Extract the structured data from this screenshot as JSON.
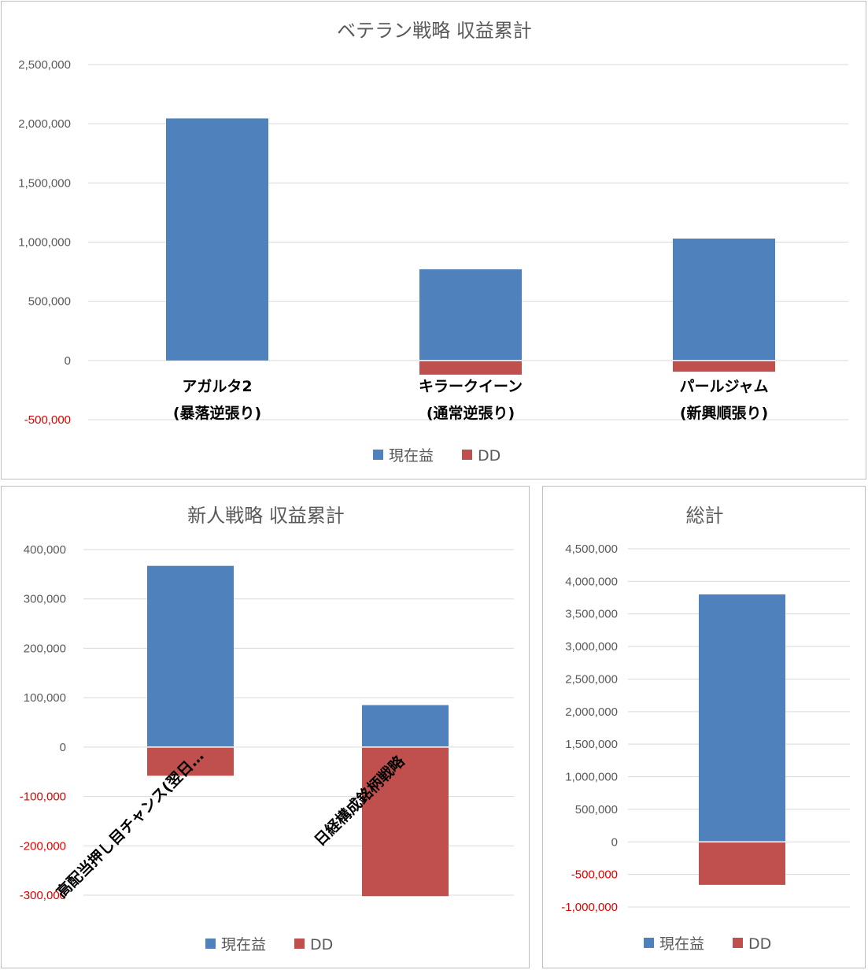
{
  "colors": {
    "profit": "#4f81bd",
    "dd": "#c0504d",
    "grid": "#d9d9d9",
    "axis_text": "#595959",
    "negative_tick": "#e00000"
  },
  "legend": {
    "profit_label": "現在益",
    "dd_label": "DD"
  },
  "chart_data": [
    {
      "id": "veteran",
      "type": "bar",
      "title": "ベテラン戦略 収益累計",
      "categories": [
        [
          "アガルタ2",
          "(暴落逆張り)"
        ],
        [
          "キラークイーン",
          "(通常逆張り)"
        ],
        [
          "パールジャム",
          "(新興順張り)"
        ]
      ],
      "series": [
        {
          "name": "現在益",
          "values": [
            2045000,
            770000,
            1030000
          ]
        },
        {
          "name": "DD",
          "values": [
            0,
            -120000,
            -95000
          ]
        }
      ],
      "ylim": [
        -500000,
        2500000
      ],
      "yticks": [
        2500000,
        2000000,
        1500000,
        1000000,
        500000,
        0,
        -500000
      ],
      "ytick_labels": [
        "2,500,000",
        "2,000,000",
        "1,500,000",
        "1,000,000",
        "500,000",
        "0",
        "-500,000"
      ],
      "legend_position": "bottom",
      "grid": true
    },
    {
      "id": "rookie",
      "type": "bar",
      "title": "新人戦略 収益累計",
      "categories": [
        [
          "高配当押し目チャンス(翌日…"
        ],
        [
          "日経構成銘柄戦略"
        ]
      ],
      "series": [
        {
          "name": "現在益",
          "values": [
            367000,
            85000
          ]
        },
        {
          "name": "DD",
          "values": [
            -58000,
            -302000
          ]
        }
      ],
      "ylim": [
        -300000,
        400000
      ],
      "yticks": [
        400000,
        300000,
        200000,
        100000,
        0,
        -100000,
        -200000,
        -300000
      ],
      "ytick_labels": [
        "400,000",
        "300,000",
        "200,000",
        "100,000",
        "0",
        "-100,000",
        "-200,000",
        "-300,000"
      ],
      "legend_position": "bottom",
      "grid": true
    },
    {
      "id": "total",
      "type": "bar",
      "title": "総計",
      "categories": [
        [
          ""
        ]
      ],
      "series": [
        {
          "name": "現在益",
          "values": [
            3800000
          ]
        },
        {
          "name": "DD",
          "values": [
            -660000
          ]
        }
      ],
      "ylim": [
        -1000000,
        4500000
      ],
      "yticks": [
        4500000,
        4000000,
        3500000,
        3000000,
        2500000,
        2000000,
        1500000,
        1000000,
        500000,
        0,
        -500000,
        -1000000
      ],
      "ytick_labels": [
        "4,500,000",
        "4,000,000",
        "3,500,000",
        "3,000,000",
        "2,500,000",
        "2,000,000",
        "1,500,000",
        "1,000,000",
        "500,000",
        "0",
        "-500,000",
        "-1,000,000"
      ],
      "legend_position": "bottom",
      "grid": true
    }
  ]
}
